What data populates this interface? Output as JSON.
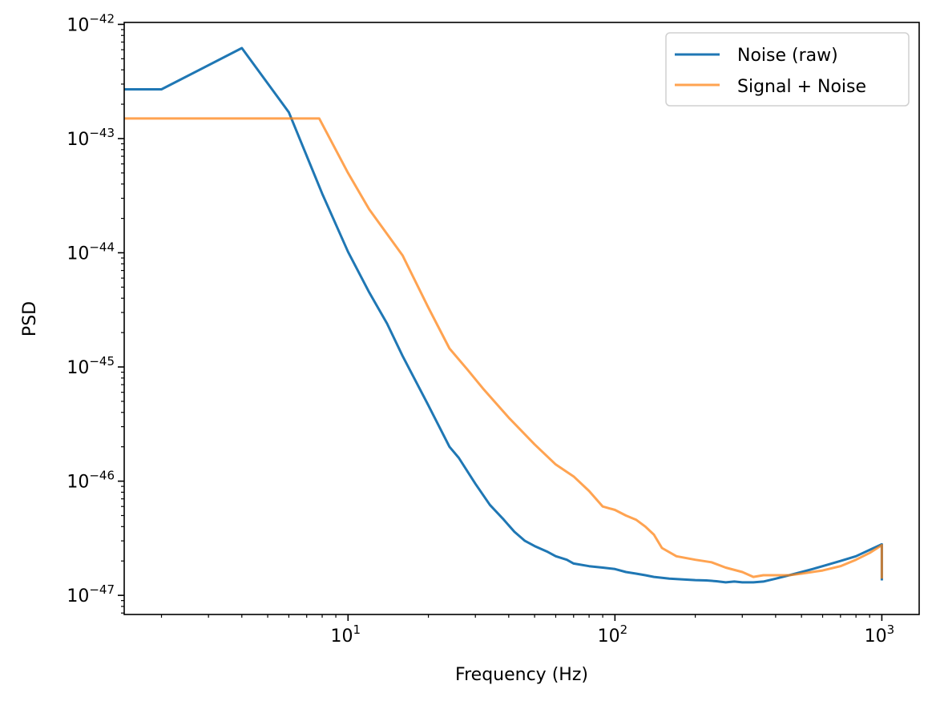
{
  "chart_data": {
    "type": "line",
    "title": "",
    "xlabel": "Frequency (Hz)",
    "ylabel": "PSD",
    "xscale": "log",
    "yscale": "log",
    "xlim": [
      1.45,
      1380
    ],
    "ylim": [
      6.8e-48,
      1.04e-42
    ],
    "grid": false,
    "legend_position": "top-right",
    "x_ticks": [
      {
        "value": 10,
        "base": "10",
        "exp": "1"
      },
      {
        "value": 100,
        "base": "10",
        "exp": "2"
      },
      {
        "value": 1000,
        "base": "10",
        "exp": "3"
      }
    ],
    "y_ticks": [
      {
        "value": 1e-47,
        "base": "10",
        "exp": "−47"
      },
      {
        "value": 1e-46,
        "base": "10",
        "exp": "−46"
      },
      {
        "value": 1e-45,
        "base": "10",
        "exp": "−45"
      },
      {
        "value": 1e-44,
        "base": "10",
        "exp": "−44"
      },
      {
        "value": 1e-43,
        "base": "10",
        "exp": "−43"
      },
      {
        "value": 1e-42,
        "base": "10",
        "exp": "−42"
      }
    ],
    "series": [
      {
        "name": "Noise (raw)",
        "color": "#1f77b4",
        "opacity": 1.0,
        "x": [
          1.45,
          2,
          4,
          6,
          8,
          10,
          12,
          14,
          16,
          20,
          24,
          26,
          30,
          34,
          38,
          42,
          46,
          50,
          56,
          60,
          66,
          70,
          80,
          90,
          100,
          110,
          120,
          130,
          140,
          160,
          180,
          200,
          220,
          240,
          260,
          280,
          300,
          330,
          360,
          400,
          450,
          500,
          550,
          600,
          700,
          800,
          900,
          1000,
          1000
        ],
        "y": [
          2.7e-43,
          2.7e-43,
          6.2e-43,
          1.7e-43,
          3.3e-44,
          1.02e-44,
          4.5e-45,
          2.4e-45,
          1.25e-45,
          4.6e-46,
          2e-46,
          1.6e-46,
          9.5e-47,
          6.2e-47,
          4.7e-47,
          3.6e-47,
          3e-47,
          2.7e-47,
          2.4e-47,
          2.2e-47,
          2.05e-47,
          1.9e-47,
          1.8e-47,
          1.75e-47,
          1.7e-47,
          1.6e-47,
          1.55e-47,
          1.5e-47,
          1.45e-47,
          1.4e-47,
          1.38e-47,
          1.36e-47,
          1.35e-47,
          1.33e-47,
          1.3e-47,
          1.32e-47,
          1.3e-47,
          1.3e-47,
          1.32e-47,
          1.4e-47,
          1.5e-47,
          1.6e-47,
          1.7e-47,
          1.8e-47,
          2e-47,
          2.2e-47,
          2.5e-47,
          2.8e-47,
          1.35e-47
        ]
      },
      {
        "name": "Signal + Noise",
        "color": "#ff7f0e",
        "opacity": 0.72,
        "x": [
          1.45,
          2,
          4,
          6,
          7.8,
          10,
          12,
          16,
          20,
          24,
          28,
          32,
          40,
          50,
          60,
          70,
          80,
          90,
          100,
          110,
          120,
          130,
          140,
          150,
          170,
          200,
          230,
          260,
          300,
          330,
          360,
          400,
          450,
          500,
          600,
          700,
          800,
          900,
          1000,
          1000
        ],
        "y": [
          1.5e-43,
          1.5e-43,
          1.5e-43,
          1.5e-43,
          1.5e-43,
          5e-44,
          2.4e-44,
          9.5e-45,
          3.3e-45,
          1.45e-45,
          9.5e-46,
          6.5e-46,
          3.6e-46,
          2.1e-46,
          1.4e-46,
          1.1e-46,
          8.2e-47,
          6e-47,
          5.6e-47,
          5e-47,
          4.6e-47,
          4e-47,
          3.4e-47,
          2.6e-47,
          2.2e-47,
          2.05e-47,
          1.95e-47,
          1.75e-47,
          1.6e-47,
          1.45e-47,
          1.5e-47,
          1.5e-47,
          1.5e-47,
          1.55e-47,
          1.65e-47,
          1.8e-47,
          2.05e-47,
          2.35e-47,
          2.75e-47,
          1.4e-47
        ]
      }
    ]
  }
}
